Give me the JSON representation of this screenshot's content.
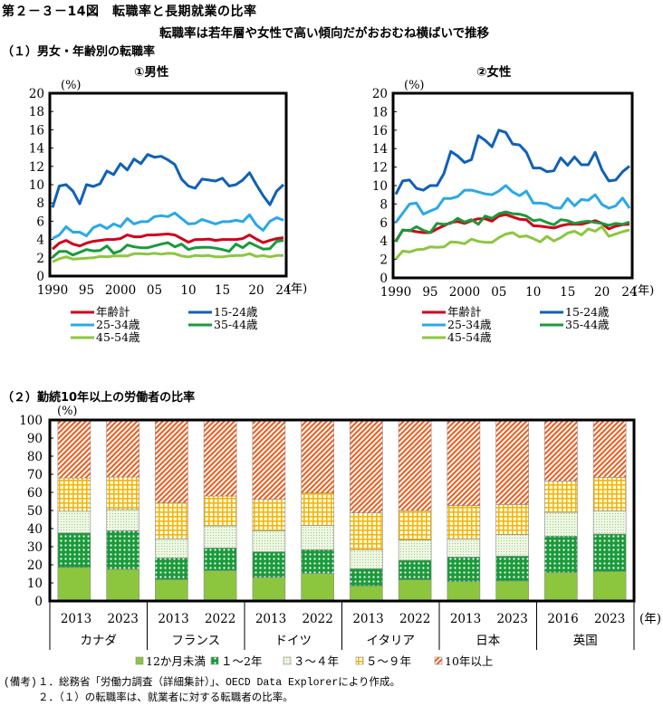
{
  "header": {
    "figure_title": "第２－３－14図　転職率と長期就業の比率",
    "subtitle": "転職率は若年層や女性で高い傾向だがおおむね横ばいで推移",
    "section1": "（１）男女・年齢別の転職率",
    "section2": "（２）勤続10年以上の労働者の比率"
  },
  "notes": {
    "label": "(備考)",
    "line1": "１．総務省「労働力調査（詳細集計）」、OECD Data Explorerにより作成。",
    "line2": "２．（１）の転職率は、就業者に対する転職者の比率。"
  },
  "chart_data": [
    {
      "type": "line",
      "title": "①男性",
      "ylabel": "(%)",
      "xlabel": "(年)",
      "ylim": [
        0,
        20
      ],
      "yticks": [
        0,
        2,
        4,
        6,
        8,
        10,
        12,
        14,
        16,
        18,
        20
      ],
      "x": [
        1990,
        1991,
        1992,
        1993,
        1994,
        1995,
        1996,
        1997,
        1998,
        1999,
        2000,
        2001,
        2002,
        2003,
        2004,
        2005,
        2006,
        2007,
        2008,
        2009,
        2010,
        2011,
        2012,
        2013,
        2014,
        2015,
        2016,
        2017,
        2018,
        2019,
        2020,
        2021,
        2022,
        2023,
        2024
      ],
      "xticks": [
        {
          "x": 1990,
          "label": "1990"
        },
        {
          "x": 1995,
          "label": "95"
        },
        {
          "x": 2000,
          "label": "2000"
        },
        {
          "x": 2005,
          "label": "05"
        },
        {
          "x": 2010,
          "label": "10"
        },
        {
          "x": 2015,
          "label": "15"
        },
        {
          "x": 2020,
          "label": "20"
        },
        {
          "x": 2024,
          "label": "24"
        }
      ],
      "grid": false,
      "series": [
        {
          "name": "年齢計",
          "color": "#d0021b",
          "values": [
            2.95,
            3.6,
            3.9,
            3.5,
            3.3,
            3.6,
            3.8,
            3.9,
            4.0,
            4.0,
            4.1,
            4.5,
            4.3,
            4.3,
            4.5,
            4.5,
            4.55,
            4.6,
            4.5,
            4.1,
            3.7,
            4.0,
            4.0,
            4.05,
            3.9,
            4.0,
            4.0,
            4.0,
            4.1,
            4.5,
            4.05,
            3.65,
            3.9,
            4.1,
            4.2
          ]
        },
        {
          "name": "15-24歳",
          "color": "#1060b8",
          "values": [
            7.5,
            9.85,
            10.0,
            9.3,
            7.9,
            10.0,
            9.8,
            10.1,
            11.5,
            11.1,
            12.3,
            11.6,
            12.8,
            12.3,
            13.3,
            13.0,
            13.1,
            12.7,
            12.2,
            10.6,
            9.85,
            9.6,
            10.6,
            10.5,
            10.4,
            10.7,
            9.85,
            10.0,
            10.5,
            11.3,
            10.0,
            8.8,
            7.8,
            9.3,
            10.0
          ]
        },
        {
          "name": "25-34歳",
          "color": "#2aa8e8",
          "values": [
            4.1,
            4.5,
            5.4,
            4.8,
            4.8,
            4.4,
            5.3,
            5.6,
            5.2,
            5.7,
            5.4,
            6.3,
            5.7,
            5.95,
            5.95,
            6.5,
            6.6,
            6.5,
            6.9,
            6.3,
            5.7,
            5.75,
            6.2,
            5.95,
            5.7,
            5.95,
            5.95,
            6.1,
            5.95,
            6.7,
            5.6,
            5.0,
            6.0,
            6.4,
            6.1
          ]
        },
        {
          "name": "35-44歳",
          "color": "#1a9a3a",
          "values": [
            2.05,
            2.7,
            2.7,
            2.3,
            2.6,
            2.9,
            2.75,
            2.8,
            3.3,
            2.5,
            2.75,
            3.4,
            3.2,
            3.1,
            3.1,
            3.3,
            3.5,
            3.65,
            3.2,
            3.5,
            2.9,
            3.1,
            3.15,
            3.15,
            3.05,
            2.9,
            2.7,
            3.5,
            3.1,
            3.65,
            3.3,
            2.95,
            3.0,
            3.8,
            3.9
          ]
        },
        {
          "name": "45-54歳",
          "color": "#8cc63f",
          "values": [
            1.55,
            1.9,
            2.1,
            1.85,
            1.9,
            1.95,
            2.0,
            2.15,
            2.1,
            2.2,
            2.2,
            2.2,
            2.45,
            2.45,
            2.4,
            2.5,
            2.4,
            2.5,
            2.45,
            2.2,
            2.1,
            2.25,
            2.2,
            2.25,
            2.1,
            2.1,
            2.2,
            2.25,
            2.25,
            2.45,
            2.15,
            2.25,
            2.1,
            2.25,
            2.25
          ]
        }
      ]
    },
    {
      "type": "line",
      "title": "②女性",
      "ylabel": "(%)",
      "xlabel": "(年)",
      "ylim": [
        0,
        20
      ],
      "yticks": [
        0,
        2,
        4,
        6,
        8,
        10,
        12,
        14,
        16,
        18,
        20
      ],
      "x": [
        1990,
        1991,
        1992,
        1993,
        1994,
        1995,
        1996,
        1997,
        1998,
        1999,
        2000,
        2001,
        2002,
        2003,
        2004,
        2005,
        2006,
        2007,
        2008,
        2009,
        2010,
        2011,
        2012,
        2013,
        2014,
        2015,
        2016,
        2017,
        2018,
        2019,
        2020,
        2021,
        2022,
        2023,
        2024
      ],
      "xticks": [
        {
          "x": 1990,
          "label": "1990"
        },
        {
          "x": 1995,
          "label": "95"
        },
        {
          "x": 2000,
          "label": "2000"
        },
        {
          "x": 2005,
          "label": "05"
        },
        {
          "x": 2010,
          "label": "10"
        },
        {
          "x": 2015,
          "label": "15"
        },
        {
          "x": 2020,
          "label": "20"
        },
        {
          "x": 2024,
          "label": "24"
        }
      ],
      "grid": false,
      "series": [
        {
          "name": "年齢計",
          "color": "#d0021b",
          "values": [
            4.0,
            5.15,
            5.15,
            5.0,
            4.9,
            4.9,
            5.3,
            5.65,
            6.0,
            6.1,
            5.9,
            6.2,
            6.4,
            6.4,
            6.15,
            6.7,
            6.85,
            6.6,
            6.35,
            6.3,
            5.65,
            5.6,
            5.5,
            5.4,
            5.65,
            5.8,
            5.8,
            5.8,
            6.0,
            6.2,
            5.9,
            5.3,
            5.6,
            5.75,
            5.8
          ]
        },
        {
          "name": "15-24歳",
          "color": "#1060b8",
          "values": [
            9.05,
            10.5,
            10.6,
            9.7,
            9.5,
            10.0,
            10.0,
            11.3,
            13.7,
            13.2,
            12.5,
            12.8,
            15.4,
            14.9,
            14.2,
            16.0,
            15.75,
            14.5,
            14.4,
            13.6,
            11.9,
            11.9,
            11.5,
            11.6,
            13.0,
            12.2,
            13.1,
            12.25,
            12.25,
            13.6,
            11.7,
            10.5,
            10.6,
            11.5,
            12.1
          ]
        },
        {
          "name": "25-34歳",
          "color": "#2aa8e8",
          "values": [
            6.0,
            7.0,
            8.0,
            8.1,
            6.9,
            7.25,
            7.55,
            8.6,
            8.6,
            8.8,
            9.5,
            9.5,
            9.3,
            9.1,
            9.0,
            9.4,
            10.0,
            9.3,
            8.9,
            9.4,
            8.1,
            8.1,
            8.0,
            7.6,
            7.55,
            8.6,
            7.8,
            8.5,
            8.4,
            9.0,
            7.95,
            7.55,
            7.8,
            8.65,
            7.55
          ]
        },
        {
          "name": "35-44歳",
          "color": "#1a9a3a",
          "values": [
            3.9,
            5.2,
            5.1,
            5.55,
            5.15,
            4.9,
            5.9,
            5.8,
            5.9,
            6.45,
            6.05,
            6.3,
            5.8,
            6.7,
            6.45,
            6.95,
            7.15,
            6.95,
            6.9,
            6.7,
            6.2,
            6.3,
            6.0,
            5.75,
            6.3,
            6.2,
            5.9,
            6.05,
            6.15,
            6.0,
            5.9,
            5.7,
            5.9,
            5.8,
            6.05
          ]
        },
        {
          "name": "45-54歳",
          "color": "#8cc63f",
          "values": [
            2.05,
            2.9,
            2.8,
            3.05,
            3.1,
            3.35,
            3.3,
            3.35,
            3.9,
            3.85,
            3.7,
            4.2,
            3.95,
            3.85,
            3.85,
            4.35,
            4.75,
            4.9,
            4.45,
            4.55,
            4.25,
            3.9,
            4.5,
            4.0,
            4.35,
            4.85,
            5.05,
            4.65,
            5.3,
            5.05,
            5.55,
            4.5,
            4.75,
            5.0,
            5.2
          ]
        }
      ]
    },
    {
      "type": "bar",
      "stacked": true,
      "title": "",
      "ylabel": "(%)",
      "xlabel": "(年)",
      "ylim": [
        0,
        100
      ],
      "yticks": [
        0,
        10,
        20,
        30,
        40,
        50,
        60,
        70,
        80,
        90,
        100
      ],
      "grid": false,
      "legend_position": "bottom",
      "groups": [
        {
          "name": "カナダ",
          "years": [
            "2013",
            "2023"
          ]
        },
        {
          "name": "フランス",
          "years": [
            "2013",
            "2022"
          ]
        },
        {
          "name": "ドイツ",
          "years": [
            "2013",
            "2022"
          ]
        },
        {
          "name": "イタリア",
          "years": [
            "2013",
            "2022"
          ]
        },
        {
          "name": "日本",
          "years": [
            "2013",
            "2023"
          ]
        },
        {
          "name": "英国",
          "years": [
            "2016",
            "2023"
          ]
        }
      ],
      "categories": [
        "カナダ 2013",
        "カナダ 2023",
        "フランス 2013",
        "フランス 2022",
        "ドイツ 2013",
        "ドイツ 2022",
        "イタリア 2013",
        "イタリア 2022",
        "日本 2013",
        "日本 2023",
        "英国 2016",
        "英国 2023"
      ],
      "series": [
        {
          "name": "12か月未満",
          "color": "#8cc63f",
          "pattern": "solid",
          "values": [
            18.5,
            17.5,
            11.8,
            16.8,
            13.0,
            15.2,
            8.3,
            11.7,
            10.7,
            11.0,
            15.7,
            16.3
          ]
        },
        {
          "name": "１～2年",
          "color": "#1a9a3a",
          "pattern": "dots",
          "values": [
            19.1,
            21.3,
            12.0,
            12.5,
            14.2,
            13.1,
            9.5,
            10.8,
            13.6,
            13.8,
            20.1,
            20.7
          ]
        },
        {
          "name": "３～４年",
          "color": "#c8e6a8",
          "pattern": "fine-dots",
          "values": [
            12.0,
            11.7,
            10.5,
            12.2,
            11.6,
            13.4,
            10.4,
            11.2,
            9.9,
            11.9,
            13.2,
            12.8
          ]
        },
        {
          "name": "５～９年",
          "color": "#f7b500",
          "pattern": "grid",
          "values": [
            18.4,
            18.0,
            19.9,
            16.5,
            17.4,
            18.0,
            20.5,
            16.3,
            18.5,
            16.6,
            17.3,
            18.5
          ]
        },
        {
          "name": "10年以上",
          "color": "#f05a1a",
          "pattern": "diagonal",
          "values": [
            32.0,
            31.5,
            45.8,
            42.0,
            43.8,
            40.3,
            51.3,
            50.0,
            47.3,
            46.7,
            33.7,
            31.7
          ]
        }
      ]
    }
  ]
}
